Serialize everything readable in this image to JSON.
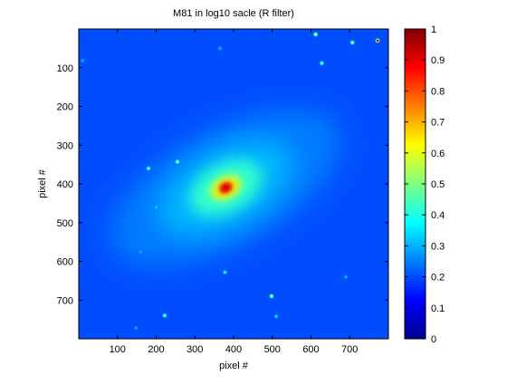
{
  "chart_data": {
    "type": "heatmap",
    "title": "M81 in log10 sacle (R filter)",
    "xlabel": "pixel #",
    "ylabel": "pixel #",
    "xlim": [
      0,
      800
    ],
    "ylim": [
      800,
      0
    ],
    "x_ticks": [
      100,
      200,
      300,
      400,
      500,
      600,
      700
    ],
    "y_ticks": [
      100,
      200,
      300,
      400,
      500,
      600,
      700
    ],
    "colorbar": {
      "colormap": "jet",
      "range": [
        0,
        1
      ],
      "ticks": [
        0,
        0.1,
        0.2,
        0.3,
        0.4,
        0.5,
        0.6,
        0.7,
        0.8,
        0.9,
        1
      ],
      "tick_labels": [
        "0",
        "0.1",
        "0.2",
        "0.3",
        "0.4",
        "0.5",
        "0.6",
        "0.7",
        "0.8",
        "0.9",
        "1"
      ]
    },
    "background_level": 0.2,
    "galaxy": {
      "center": [
        380,
        410
      ],
      "peak_level": 0.95,
      "position_angle_deg": -28,
      "halo_axes": [
        330,
        150
      ],
      "disk_axes": [
        190,
        100
      ],
      "bulge_axes": [
        100,
        62
      ],
      "core_axes": [
        45,
        30
      ],
      "nucleus_axes": [
        18,
        14
      ]
    },
    "point_sources": [
      {
        "x": 772,
        "y": 30,
        "peak": 0.95
      },
      {
        "x": 707,
        "y": 35,
        "peak": 0.55
      },
      {
        "x": 612,
        "y": 14,
        "peak": 0.6
      },
      {
        "x": 628,
        "y": 88,
        "peak": 0.5
      },
      {
        "x": 255,
        "y": 343,
        "peak": 0.55
      },
      {
        "x": 180,
        "y": 360,
        "peak": 0.5
      },
      {
        "x": 498,
        "y": 690,
        "peak": 0.55
      },
      {
        "x": 222,
        "y": 740,
        "peak": 0.5
      },
      {
        "x": 378,
        "y": 628,
        "peak": 0.4
      },
      {
        "x": 510,
        "y": 742,
        "peak": 0.35
      },
      {
        "x": 200,
        "y": 460,
        "peak": 0.35
      },
      {
        "x": 365,
        "y": 50,
        "peak": 0.3
      },
      {
        "x": 10,
        "y": 82,
        "peak": 0.3
      },
      {
        "x": 690,
        "y": 640,
        "peak": 0.3
      },
      {
        "x": 160,
        "y": 575,
        "peak": 0.3
      },
      {
        "x": 148,
        "y": 772,
        "peak": 0.3
      }
    ]
  }
}
